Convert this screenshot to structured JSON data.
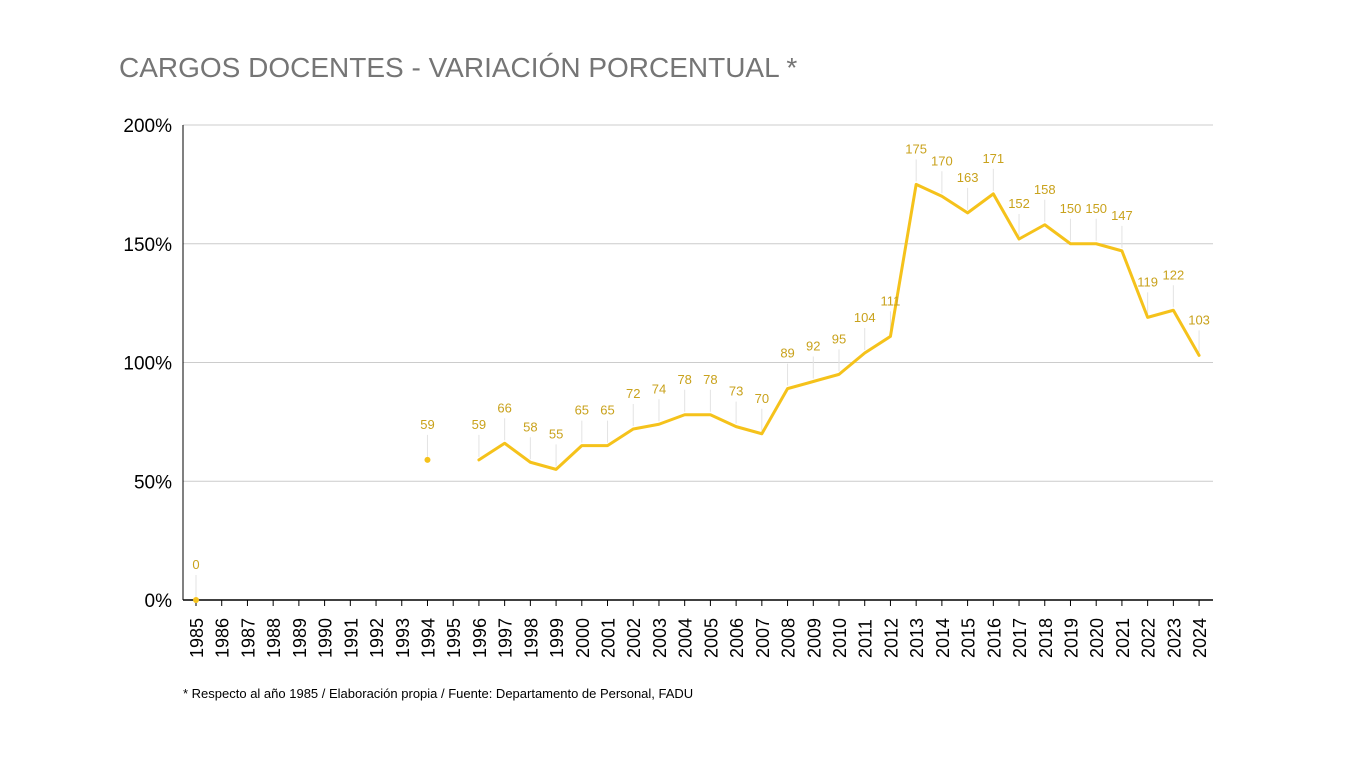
{
  "chart_data": {
    "type": "line",
    "title": "CARGOS DOCENTES - VARIACIÓN PORCENTUAL *",
    "footnote": "* Respecto al año 1985 / Elaboración propia / Fuente: Departamento de Personal, FADU",
    "xlabel": "",
    "ylabel": "",
    "ylim": [
      0,
      200
    ],
    "y_ticks": [
      0,
      50,
      100,
      150,
      200
    ],
    "y_tick_labels": [
      "0%",
      "50%",
      "100%",
      "150%",
      "200%"
    ],
    "grid": true,
    "legend": "none",
    "series_color": "#F5C21B",
    "label_color": "#C9A21C",
    "grid_color": "#CCCCCC",
    "categories": [
      "1985",
      "1986",
      "1987",
      "1988",
      "1989",
      "1990",
      "1991",
      "1992",
      "1993",
      "1994",
      "1995",
      "1996",
      "1997",
      "1998",
      "1999",
      "2000",
      "2001",
      "2002",
      "2003",
      "2004",
      "2005",
      "2006",
      "2007",
      "2008",
      "2009",
      "2010",
      "2011",
      "2012",
      "2013",
      "2014",
      "2015",
      "2016",
      "2017",
      "2018",
      "2019",
      "2020",
      "2021",
      "2022",
      "2023",
      "2024"
    ],
    "values": [
      0,
      null,
      null,
      null,
      null,
      null,
      null,
      null,
      null,
      59,
      null,
      59,
      66,
      58,
      55,
      65,
      65,
      72,
      74,
      78,
      78,
      73,
      70,
      89,
      92,
      95,
      104,
      111,
      175,
      170,
      163,
      171,
      152,
      158,
      150,
      150,
      147,
      119,
      122,
      103
    ]
  }
}
